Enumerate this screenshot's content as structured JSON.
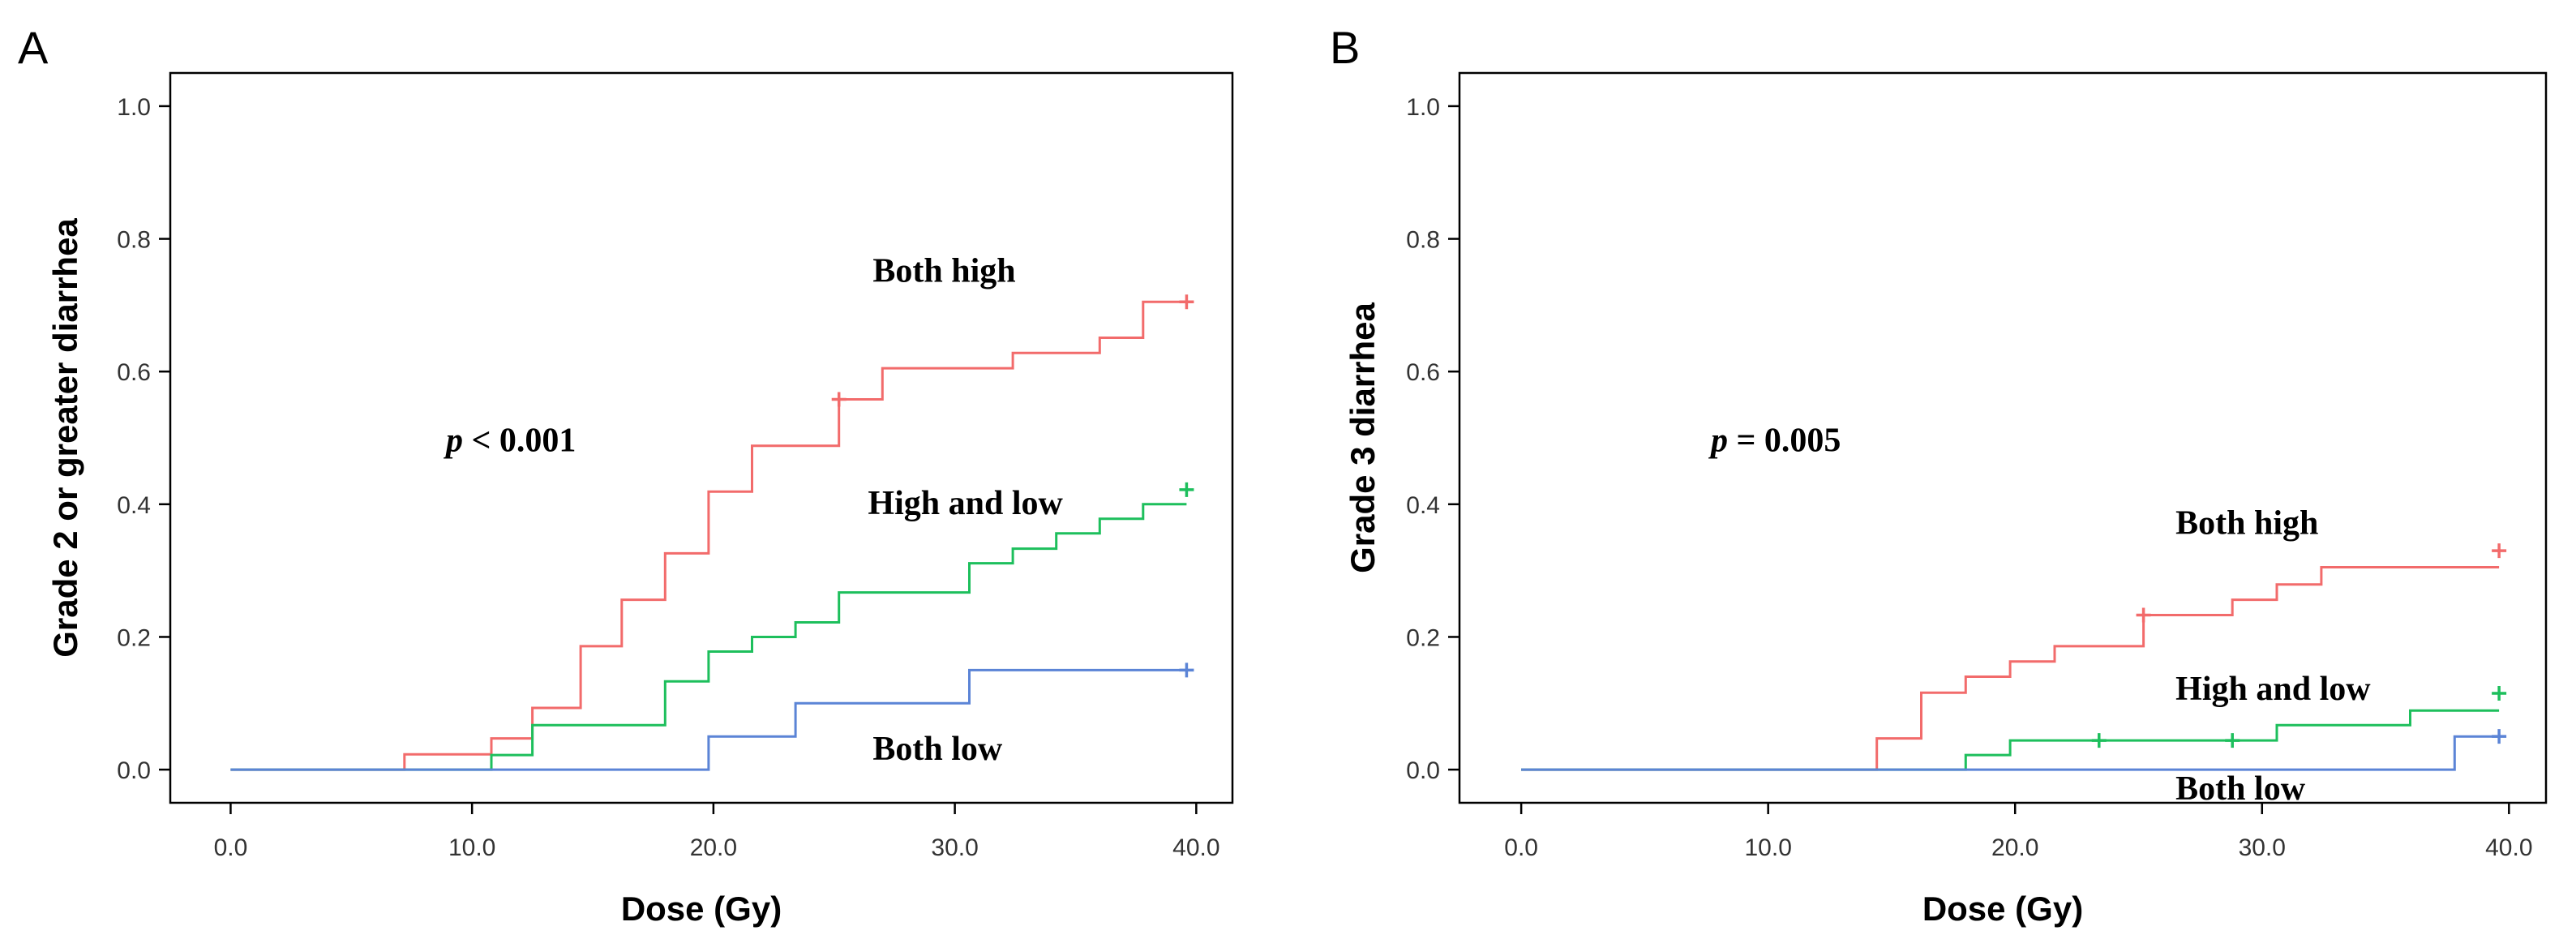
{
  "chart_data": [
    {
      "type": "line",
      "step": true,
      "panel_label": "A",
      "xlabel": "Dose (Gy)",
      "ylabel": "Grade 2 or greater diarrhea",
      "xlim": [
        -2.5,
        41.5
      ],
      "ylim": [
        -0.05,
        1.05
      ],
      "xticks": [
        0,
        10,
        20,
        30,
        40
      ],
      "xtick_labels": [
        "0.0",
        "10.0",
        "20.0",
        "30.0",
        "40.0"
      ],
      "yticks": [
        0,
        0.2,
        0.4,
        0.6,
        0.8,
        1.0
      ],
      "ytick_labels": [
        "0.0",
        "0.2",
        "0.4",
        "0.6",
        "0.8",
        "1.0"
      ],
      "grid": false,
      "annotation_p": {
        "prefix": "p",
        "rest": " < 0.001"
      },
      "series": [
        {
          "name": "Both high",
          "color": "#f26b6b",
          "label_pos": {
            "x": 26.6,
            "y": 0.735
          },
          "points": [
            [
              0,
              0
            ],
            [
              7.2,
              0
            ],
            [
              7.2,
              0.023
            ],
            [
              10.8,
              0.023
            ],
            [
              10.8,
              0.047
            ],
            [
              12.5,
              0.047
            ],
            [
              12.5,
              0.093
            ],
            [
              14.5,
              0.093
            ],
            [
              14.5,
              0.186
            ],
            [
              16.2,
              0.186
            ],
            [
              16.2,
              0.256
            ],
            [
              18.0,
              0.256
            ],
            [
              18.0,
              0.326
            ],
            [
              19.8,
              0.326
            ],
            [
              19.8,
              0.419
            ],
            [
              21.6,
              0.419
            ],
            [
              21.6,
              0.488
            ],
            [
              25.2,
              0.488
            ],
            [
              25.2,
              0.558
            ],
            [
              27.0,
              0.558
            ],
            [
              27.0,
              0.605
            ],
            [
              32.4,
              0.605
            ],
            [
              32.4,
              0.628
            ],
            [
              36.0,
              0.628
            ],
            [
              36.0,
              0.651
            ],
            [
              37.8,
              0.651
            ],
            [
              37.8,
              0.705
            ],
            [
              39.6,
              0.705
            ]
          ],
          "censored": [
            [
              25.2,
              0.558
            ],
            [
              39.6,
              0.705
            ]
          ]
        },
        {
          "name": "High and low",
          "color": "#1dbf5c",
          "label_pos": {
            "x": 26.4,
            "y": 0.385
          },
          "points": [
            [
              0,
              0
            ],
            [
              7.2,
              0
            ],
            [
              10.8,
              0
            ],
            [
              10.8,
              0.022
            ],
            [
              12.5,
              0.022
            ],
            [
              12.5,
              0.067
            ],
            [
              18.0,
              0.067
            ],
            [
              18.0,
              0.133
            ],
            [
              19.8,
              0.133
            ],
            [
              19.8,
              0.178
            ],
            [
              21.6,
              0.178
            ],
            [
              21.6,
              0.2
            ],
            [
              23.4,
              0.2
            ],
            [
              23.4,
              0.222
            ],
            [
              25.2,
              0.222
            ],
            [
              25.2,
              0.267
            ],
            [
              30.6,
              0.267
            ],
            [
              30.6,
              0.311
            ],
            [
              32.4,
              0.311
            ],
            [
              32.4,
              0.333
            ],
            [
              34.2,
              0.333
            ],
            [
              34.2,
              0.356
            ],
            [
              36.0,
              0.356
            ],
            [
              36.0,
              0.378
            ],
            [
              37.8,
              0.378
            ],
            [
              37.8,
              0.4
            ],
            [
              39.6,
              0.4
            ]
          ],
          "censored": [
            [
              39.6,
              0.422
            ]
          ]
        },
        {
          "name": "Both low",
          "color": "#5b84d6",
          "label_pos": {
            "x": 26.6,
            "y": 0.015
          },
          "points": [
            [
              0,
              0
            ],
            [
              19.8,
              0
            ],
            [
              19.8,
              0.05
            ],
            [
              23.4,
              0.05
            ],
            [
              23.4,
              0.1
            ],
            [
              30.6,
              0.1
            ],
            [
              30.6,
              0.15
            ],
            [
              39.6,
              0.15
            ]
          ],
          "censored": [
            [
              39.6,
              0.15
            ]
          ]
        }
      ]
    },
    {
      "type": "line",
      "step": true,
      "panel_label": "B",
      "xlabel": "Dose (Gy)",
      "ylabel": "Grade 3 diarrhea",
      "xlim": [
        -2.5,
        41.5
      ],
      "ylim": [
        -0.05,
        1.05
      ],
      "xticks": [
        0,
        10,
        20,
        30,
        40
      ],
      "xtick_labels": [
        "0.0",
        "10.0",
        "20.0",
        "30.0",
        "40.0"
      ],
      "yticks": [
        0,
        0.2,
        0.4,
        0.6,
        0.8,
        1.0
      ],
      "ytick_labels": [
        "0.0",
        "0.2",
        "0.4",
        "0.6",
        "0.8",
        "1.0"
      ],
      "grid": false,
      "annotation_p": {
        "prefix": "p",
        "rest": " = 0.005"
      },
      "series": [
        {
          "name": "Both high",
          "color": "#f26b6b",
          "label_pos": {
            "x": 26.5,
            "y": 0.355
          },
          "points": [
            [
              0,
              0
            ],
            [
              14.4,
              0
            ],
            [
              14.4,
              0.047
            ],
            [
              16.2,
              0.047
            ],
            [
              16.2,
              0.116
            ],
            [
              18.0,
              0.116
            ],
            [
              18.0,
              0.14
            ],
            [
              19.8,
              0.14
            ],
            [
              19.8,
              0.163
            ],
            [
              21.6,
              0.163
            ],
            [
              21.6,
              0.186
            ],
            [
              25.2,
              0.186
            ],
            [
              25.2,
              0.233
            ],
            [
              28.8,
              0.233
            ],
            [
              28.8,
              0.256
            ],
            [
              30.6,
              0.256
            ],
            [
              30.6,
              0.279
            ],
            [
              32.4,
              0.279
            ],
            [
              32.4,
              0.305
            ],
            [
              39.6,
              0.305
            ]
          ],
          "censored": [
            [
              25.2,
              0.233
            ],
            [
              39.6,
              0.33
            ]
          ]
        },
        {
          "name": "High and low",
          "color": "#1dbf5c",
          "label_pos": {
            "x": 26.5,
            "y": 0.105
          },
          "points": [
            [
              0,
              0
            ],
            [
              14.4,
              0
            ],
            [
              18.0,
              0
            ],
            [
              18.0,
              0.022
            ],
            [
              19.8,
              0.022
            ],
            [
              19.8,
              0.044
            ],
            [
              30.6,
              0.044
            ],
            [
              30.6,
              0.067
            ],
            [
              36.0,
              0.067
            ],
            [
              36.0,
              0.089
            ],
            [
              39.6,
              0.089
            ]
          ],
          "censored": [
            [
              23.4,
              0.044
            ],
            [
              28.8,
              0.044
            ],
            [
              39.6,
              0.115
            ]
          ]
        },
        {
          "name": "Both low",
          "color": "#5b84d6",
          "label_pos": {
            "x": 26.5,
            "y": -0.045
          },
          "points": [
            [
              0,
              0
            ],
            [
              37.8,
              0
            ],
            [
              37.8,
              0.05
            ],
            [
              39.6,
              0.05
            ]
          ],
          "censored": [
            [
              39.6,
              0.05
            ]
          ]
        }
      ]
    }
  ]
}
